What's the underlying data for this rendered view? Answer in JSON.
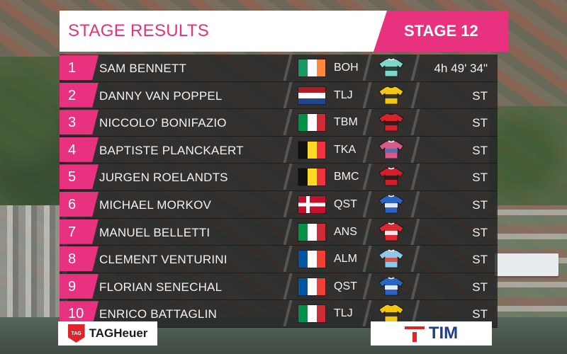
{
  "header": {
    "title": "STAGE RESULTS",
    "stage": "STAGE 12"
  },
  "results": [
    {
      "rank": "1",
      "name": "SAM BENNETT",
      "flag": "ireland",
      "team": "BOH",
      "jersey": "boh-jersey",
      "time": "4h 49' 34\""
    },
    {
      "rank": "2",
      "name": "DANNY VAN POPPEL",
      "flag": "netherlands",
      "team": "TLJ",
      "jersey": "tlj-jersey",
      "time": "ST"
    },
    {
      "rank": "3",
      "name": "NICCOLO' BONIFAZIO",
      "flag": "italy",
      "team": "TBM",
      "jersey": "tbm-jersey",
      "time": "ST"
    },
    {
      "rank": "4",
      "name": "BAPTISTE PLANCKAERT",
      "flag": "belgium",
      "team": "TKA",
      "jersey": "tka-jersey",
      "time": "ST"
    },
    {
      "rank": "5",
      "name": "JURGEN ROELANDTS",
      "flag": "belgium",
      "team": "BMC",
      "jersey": "bmc-jersey",
      "time": "ST"
    },
    {
      "rank": "6",
      "name": "MICHAEL MORKOV",
      "flag": "denmark",
      "team": "QST",
      "jersey": "qst-jersey",
      "time": "ST"
    },
    {
      "rank": "7",
      "name": "MANUEL BELLETTI",
      "flag": "italy",
      "team": "ANS",
      "jersey": "ans-jersey",
      "time": "ST"
    },
    {
      "rank": "8",
      "name": "CLEMENT VENTURINI",
      "flag": "france",
      "team": "ALM",
      "jersey": "alm-jersey",
      "time": "ST"
    },
    {
      "rank": "9",
      "name": "FLORIAN SENECHAL",
      "flag": "france",
      "team": "QST",
      "jersey": "qst-jersey",
      "time": "ST"
    },
    {
      "rank": "10",
      "name": "ENRICO BATTAGLIN",
      "flag": "italy",
      "team": "TLJ",
      "jersey": "tlj-jersey",
      "time": "ST"
    }
  ],
  "sponsors": {
    "left": "TAGHeuer",
    "left_badge": "TAG",
    "right": "TIM"
  },
  "colors": {
    "accent_pink": "#e8327f",
    "row_bg": "#232326",
    "title_pink": "#e6307d",
    "tim_blue": "#1e3e8c",
    "tag_red": "#e0232b"
  }
}
